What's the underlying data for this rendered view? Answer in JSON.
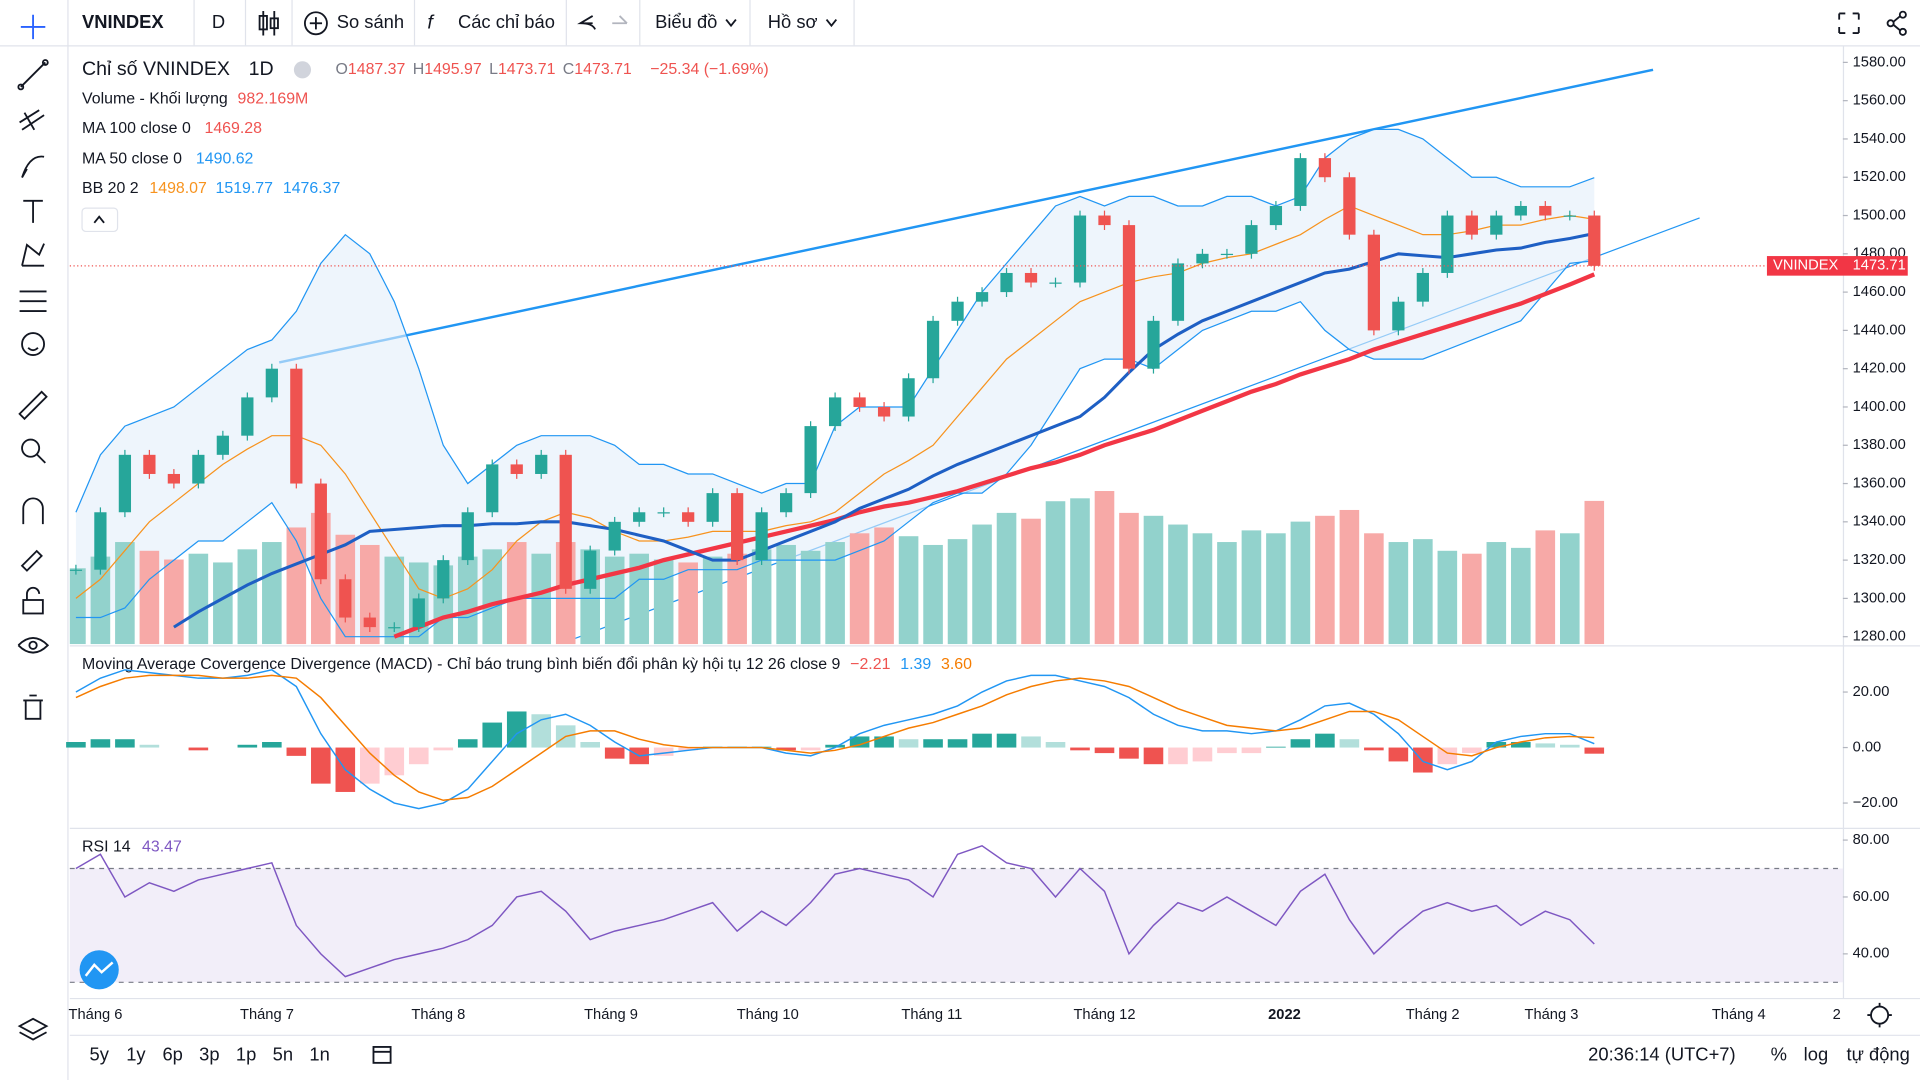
{
  "toolbar": {
    "symbol": "VNINDEX",
    "interval": "D",
    "compare": "So sánh",
    "indicators": "Các chỉ báo",
    "chart_menu": "Biểu đồ",
    "profile": "Hồ sơ"
  },
  "chart_data": {
    "type": "candlestick",
    "title": "Chỉ số VNINDEX",
    "interval": "1D",
    "ohlc": [
      {
        "key": "O",
        "value": "1487.37"
      },
      {
        "key": "H",
        "value": "1495.97"
      },
      {
        "key": "L",
        "value": "1473.71"
      },
      {
        "key": "C",
        "value": "1473.71"
      }
    ],
    "change": "−25.34 (−1.69%)",
    "colors": {
      "up": "#26a69a",
      "down": "#ef5350",
      "up_volume": "#92d2cc",
      "down_volume": "#f7a9a7"
    },
    "ylim": [
      1275.5,
      1587
    ],
    "yticks": [
      {
        "value": 1580,
        "label": "1580.00"
      },
      {
        "value": 1560,
        "label": "1560.00"
      },
      {
        "value": 1540,
        "label": "1540.00"
      },
      {
        "value": 1520,
        "label": "1520.00"
      },
      {
        "value": 1500,
        "label": "1500.00"
      },
      {
        "value": 1480,
        "label": "1480.00"
      },
      {
        "value": 1460,
        "label": "1460.00"
      },
      {
        "value": 1440,
        "label": "1440.00"
      },
      {
        "value": 1420,
        "label": "1420.00"
      },
      {
        "value": 1400,
        "label": "1400.00"
      },
      {
        "value": 1380,
        "label": "1380.00"
      },
      {
        "value": 1360,
        "label": "1360.00"
      },
      {
        "value": 1340,
        "label": "1340.00"
      },
      {
        "value": 1320,
        "label": "1320.00"
      },
      {
        "value": 1300,
        "label": "1300.00"
      },
      {
        "value": 1280,
        "label": "1280.00"
      }
    ],
    "grid": false,
    "last_price": {
      "name": "VNINDEX",
      "value": 1473.71,
      "label": "1473.71"
    },
    "close": [
      1315,
      1345,
      1375,
      1365,
      1360,
      1375,
      1385,
      1405,
      1420,
      1360,
      1310,
      1290,
      1285,
      1285,
      1300,
      1320,
      1345,
      1370,
      1365,
      1375,
      1305,
      1325,
      1340,
      1345,
      1345,
      1340,
      1355,
      1320,
      1345,
      1355,
      1390,
      1405,
      1400,
      1395,
      1415,
      1445,
      1455,
      1460,
      1470,
      1465,
      1465,
      1500,
      1495,
      1420,
      1445,
      1475,
      1480,
      1480,
      1495,
      1505,
      1530,
      1520,
      1490,
      1440,
      1455,
      1470,
      1500,
      1490,
      1500,
      1505,
      1500,
      1500,
      1473.71
    ],
    "volume_legend": {
      "name": "Volume - Khối lượng",
      "value": "982.169M"
    },
    "volume": [
      520,
      600,
      700,
      640,
      580,
      620,
      560,
      650,
      700,
      800,
      900,
      750,
      680,
      600,
      560,
      540,
      600,
      650,
      700,
      620,
      700,
      650,
      600,
      620,
      580,
      560,
      600,
      620,
      650,
      680,
      640,
      700,
      760,
      800,
      740,
      680,
      720,
      820,
      900,
      860,
      980,
      1000,
      1050,
      900,
      880,
      820,
      760,
      700,
      780,
      760,
      840,
      880,
      920,
      760,
      700,
      720,
      640,
      620,
      700,
      660,
      780,
      760,
      982.169
    ],
    "overlays": [
      {
        "name": "MA 100 close 0",
        "value": "1469.28",
        "color": "#f23645",
        "width": 3.5,
        "values": [
          null,
          null,
          null,
          null,
          null,
          null,
          null,
          null,
          null,
          null,
          null,
          null,
          null,
          1280,
          1285,
          1290,
          1293,
          1297,
          1300,
          1303,
          1307,
          1310,
          1313,
          1316,
          1320,
          1323,
          1326,
          1329,
          1332,
          1335,
          1338,
          1341,
          1345,
          1348,
          1350,
          1353,
          1356,
          1360,
          1364,
          1368,
          1371,
          1375,
          1380,
          1384,
          1388,
          1393,
          1398,
          1403,
          1408,
          1412,
          1417,
          1421,
          1425,
          1430,
          1434,
          1438,
          1442,
          1446,
          1450,
          1454,
          1459,
          1464,
          1469.28
        ]
      },
      {
        "name": "MA 50 close 0",
        "value": "1490.62",
        "color": "#1e5fc4",
        "width": 2.5,
        "values": [
          null,
          null,
          null,
          null,
          1285,
          1293,
          1300,
          1307,
          1313,
          1318,
          1323,
          1328,
          1335,
          1336,
          1337,
          1338,
          1338,
          1339,
          1339,
          1340,
          1340,
          1338,
          1336,
          1333,
          1330,
          1325,
          1320,
          1320,
          1325,
          1330,
          1335,
          1340,
          1347,
          1352,
          1357,
          1364,
          1370,
          1375,
          1380,
          1385,
          1390,
          1395,
          1405,
          1418,
          1430,
          1438,
          1445,
          1450,
          1455,
          1460,
          1465,
          1470,
          1472,
          1476,
          1480,
          1479,
          1478,
          1480,
          1482,
          1483,
          1486,
          1488,
          1490.62
        ]
      }
    ],
    "bollinger": {
      "name": "BB 20 2",
      "fill": "#e3eefa",
      "basis": {
        "label": "1498.07",
        "color": "#f7931e",
        "values": [
          1300,
          1310,
          1325,
          1340,
          1350,
          1360,
          1370,
          1378,
          1385,
          1385,
          1380,
          1365,
          1345,
          1325,
          1305,
          1300,
          1305,
          1315,
          1330,
          1340,
          1345,
          1342,
          1335,
          1330,
          1330,
          1332,
          1335,
          1335,
          1335,
          1338,
          1340,
          1345,
          1355,
          1365,
          1372,
          1380,
          1395,
          1410,
          1425,
          1435,
          1445,
          1455,
          1460,
          1465,
          1468,
          1470,
          1475,
          1478,
          1480,
          1485,
          1490,
          1498,
          1505,
          1500,
          1495,
          1490,
          1490,
          1492,
          1495,
          1495,
          1498,
          1500,
          1498.07
        ]
      },
      "upper": {
        "label": "1519.77",
        "color": "#2196f3",
        "values": [
          1345,
          1375,
          1390,
          1395,
          1400,
          1410,
          1420,
          1430,
          1435,
          1450,
          1475,
          1490,
          1480,
          1455,
          1420,
          1380,
          1360,
          1370,
          1380,
          1385,
          1385,
          1385,
          1380,
          1370,
          1370,
          1365,
          1365,
          1360,
          1355,
          1360,
          1360,
          1390,
          1400,
          1400,
          1400,
          1420,
          1440,
          1460,
          1475,
          1490,
          1505,
          1510,
          1505,
          1510,
          1510,
          1505,
          1505,
          1510,
          1510,
          1505,
          1510,
          1530,
          1540,
          1545,
          1545,
          1540,
          1530,
          1520,
          1520,
          1515,
          1515,
          1515,
          1519.77
        ]
      },
      "lower": {
        "label": "1476.37",
        "color": "#2196f3",
        "values": [
          1290,
          1290,
          1295,
          1310,
          1320,
          1330,
          1330,
          1340,
          1350,
          1330,
          1300,
          1280,
          1280,
          1280,
          1280,
          1290,
          1290,
          1295,
          1300,
          1300,
          1300,
          1300,
          1300,
          1310,
          1310,
          1315,
          1315,
          1315,
          1320,
          1320,
          1320,
          1320,
          1325,
          1330,
          1340,
          1350,
          1355,
          1355,
          1365,
          1380,
          1400,
          1420,
          1425,
          1425,
          1420,
          1430,
          1440,
          1445,
          1450,
          1450,
          1455,
          1440,
          1430,
          1425,
          1425,
          1425,
          1430,
          1435,
          1440,
          1445,
          1460,
          1475,
          1476.37
        ]
      }
    },
    "time_labels": [
      "Tháng 6",
      "Tháng 7",
      "Tháng 8",
      "Tháng 9",
      "Tháng 10",
      "Tháng 11",
      "Tháng 12",
      "2022",
      "Tháng 2",
      "Tháng 3",
      "Tháng 4",
      "2"
    ],
    "macd": {
      "name": "Moving Average Covergence Divergence (MACD) - Chỉ báo trung bình biến đổi phân kỳ hội tụ 12 26 close 9",
      "ylim": [
        -28.9,
        36.4
      ],
      "yticks": [
        {
          "value": 20,
          "label": "20.00"
        },
        {
          "value": 0,
          "label": "0.00"
        },
        {
          "value": -20,
          "label": "−20.00"
        }
      ],
      "histogram": {
        "label": "−2.21",
        "color": "#ef5350",
        "values": [
          2,
          3,
          3,
          1,
          0,
          -1,
          0,
          1,
          2,
          -3,
          -13,
          -16,
          -13,
          -10,
          -6,
          -1,
          3,
          9,
          13,
          12,
          8,
          2,
          -4,
          -6,
          -3,
          -1,
          0.3,
          0.3,
          0.3,
          -1,
          -1,
          1,
          4,
          4,
          3,
          3,
          3,
          5,
          5,
          4,
          2,
          -1,
          -2,
          -4,
          -6,
          -6,
          -5,
          -2,
          -2,
          0.3,
          3,
          5,
          3,
          -1,
          -5,
          -9,
          -6,
          -2,
          2,
          2,
          1.5,
          1,
          -2.21
        ]
      },
      "macd_line": {
        "label": "1.39",
        "color": "#2196f3",
        "values": [
          20,
          25,
          28,
          27,
          26,
          25,
          25,
          26,
          28,
          22,
          5,
          -8,
          -15,
          -20,
          -22,
          -20,
          -15,
          -5,
          5,
          10,
          12,
          8,
          2,
          -3,
          -2,
          -1,
          0,
          0,
          0,
          -2,
          -3,
          0,
          5,
          8,
          10,
          12,
          15,
          20,
          24,
          26,
          26,
          24,
          22,
          18,
          12,
          8,
          6,
          6,
          5,
          6,
          10,
          15,
          16,
          12,
          5,
          -5,
          -8,
          -5,
          2,
          4,
          5,
          5,
          1.39
        ]
      },
      "signal_line": {
        "label": "3.60",
        "color": "#f57c00",
        "values": [
          18,
          22,
          25,
          26,
          26,
          26,
          25,
          25,
          26,
          25,
          18,
          8,
          -2,
          -10,
          -16,
          -19,
          -18,
          -14,
          -8,
          -2,
          4,
          6,
          6,
          3,
          1,
          0,
          0,
          0,
          0,
          -1,
          -2,
          -1,
          1,
          4,
          7,
          9,
          12,
          15,
          19,
          22,
          24,
          25,
          24,
          22,
          18,
          14,
          11,
          8,
          7,
          6,
          7,
          10,
          13,
          13,
          10,
          4,
          -2,
          -3,
          0,
          2,
          3.5,
          4,
          3.6
        ]
      }
    },
    "rsi": {
      "name": "RSI 14",
      "label": "43.47",
      "color": "#7e57c2",
      "ylim": [
        24.5,
        83.9
      ],
      "yticks": [
        {
          "value": 80,
          "label": "80.00"
        },
        {
          "value": 60,
          "label": "60.00"
        },
        {
          "value": 40,
          "label": "40.00"
        }
      ],
      "bands": [
        70,
        30
      ],
      "values": [
        70,
        75,
        60,
        65,
        62,
        66,
        68,
        70,
        72,
        50,
        40,
        32,
        35,
        38,
        40,
        42,
        45,
        50,
        60,
        62,
        55,
        45,
        48,
        50,
        52,
        55,
        58,
        48,
        55,
        50,
        58,
        68,
        70,
        68,
        66,
        60,
        75,
        78,
        72,
        70,
        60,
        70,
        62,
        40,
        50,
        58,
        55,
        60,
        55,
        50,
        62,
        68,
        52,
        40,
        48,
        55,
        58,
        55,
        57,
        50,
        55,
        52,
        43.47
      ]
    }
  },
  "bottom_bar": {
    "ranges": [
      "5y",
      "1y",
      "6p",
      "3p",
      "1p",
      "5n",
      "1n"
    ],
    "clock": "20:36:14 (UTC+7)",
    "percent": "%",
    "log": "log",
    "auto": "tự động"
  }
}
